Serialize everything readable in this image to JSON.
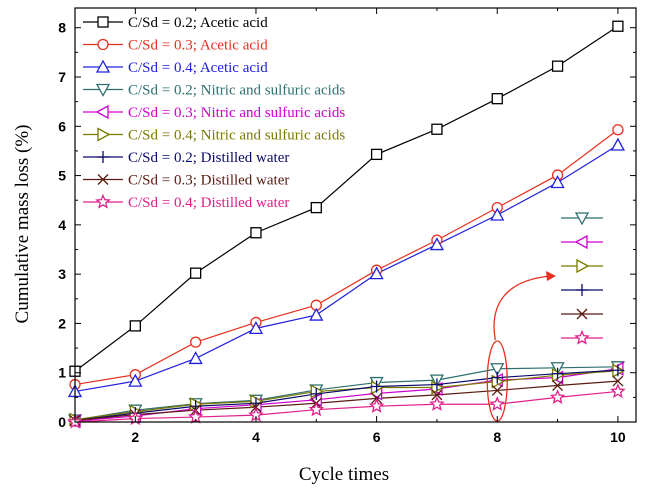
{
  "chart_data": {
    "type": "line",
    "title": "",
    "xlabel": "Cycle times",
    "ylabel": "Cumulative mass loss (%)",
    "xlim": [
      1,
      10.3
    ],
    "ylim": [
      0,
      8.4
    ],
    "x": [
      1,
      2,
      3,
      4,
      5,
      6,
      7,
      8,
      9,
      10
    ],
    "xticks": [
      2,
      4,
      6,
      8,
      10
    ],
    "yticks": [
      0,
      1,
      2,
      3,
      4,
      5,
      6,
      7,
      8
    ],
    "grid": false,
    "legend_position": "top-left",
    "series": [
      {
        "name": "C/Sd = 0.2; Acetic acid",
        "color": "#000000",
        "marker": "square",
        "values": [
          1.03,
          1.95,
          3.02,
          3.84,
          4.35,
          5.43,
          5.94,
          6.56,
          7.22,
          8.03
        ]
      },
      {
        "name": "C/Sd = 0.3; Acetic acid",
        "color": "#e8301f",
        "marker": "circle",
        "values": [
          0.76,
          0.96,
          1.62,
          2.02,
          2.37,
          3.08,
          3.69,
          4.35,
          5.01,
          5.93
        ]
      },
      {
        "name": "C/Sd = 0.4; Acetic acid",
        "color": "#2020e0",
        "marker": "triangle-up",
        "values": [
          0.62,
          0.83,
          1.29,
          1.9,
          2.17,
          3.01,
          3.6,
          4.2,
          4.86,
          5.62
        ]
      },
      {
        "name": "C/Sd = 0.2; Nitric and sulfuric acids",
        "color": "#2e6f6f",
        "marker": "triangle-down",
        "values": [
          0.04,
          0.24,
          0.37,
          0.44,
          0.65,
          0.8,
          0.85,
          1.08,
          1.1,
          1.12
        ]
      },
      {
        "name": "C/Sd = 0.3; Nitric and sulfuric acids",
        "color": "#d000d0",
        "marker": "triangle-left",
        "values": [
          0.02,
          0.12,
          0.27,
          0.35,
          0.45,
          0.58,
          0.67,
          0.85,
          0.9,
          1.08
        ]
      },
      {
        "name": "C/Sd = 0.4; Nitric and sulfuric acids",
        "color": "#7a7a00",
        "marker": "triangle-right",
        "values": [
          0.05,
          0.21,
          0.36,
          0.42,
          0.62,
          0.7,
          0.7,
          0.82,
          0.95,
          1.04
        ]
      },
      {
        "name": "C/Sd = 0.2; Distilled water",
        "color": "#0a0a6a",
        "marker": "plus",
        "values": [
          0.03,
          0.18,
          0.32,
          0.38,
          0.57,
          0.72,
          0.76,
          0.9,
          0.98,
          1.05
        ]
      },
      {
        "name": "C/Sd = 0.3; Distilled water",
        "color": "#5a1a10",
        "marker": "x",
        "values": [
          0.03,
          0.15,
          0.24,
          0.3,
          0.38,
          0.48,
          0.55,
          0.64,
          0.74,
          0.83
        ]
      },
      {
        "name": "C/Sd = 0.4; Distilled water",
        "color": "#e0208a",
        "marker": "star",
        "values": [
          0.0,
          0.07,
          0.1,
          0.14,
          0.25,
          0.32,
          0.36,
          0.36,
          0.5,
          0.62
        ]
      }
    ],
    "inset_legend_series": [
      3,
      4,
      5,
      6,
      7,
      8
    ],
    "annotation": {
      "type": "ellipse-with-arrow",
      "x": 8,
      "color": "#e8301f"
    }
  }
}
